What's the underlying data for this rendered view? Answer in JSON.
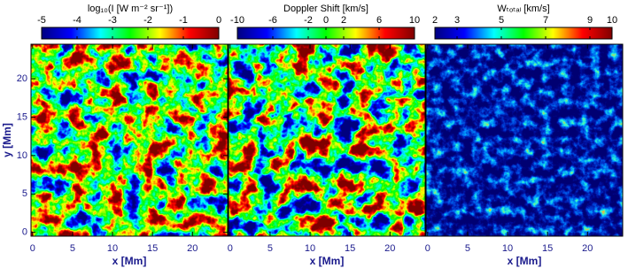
{
  "chart_data": [
    {
      "type": "heatmap",
      "colormap": "jet",
      "colorbar_label": "log₁₀(I [W m⁻² sr⁻¹])",
      "colorbar_lim": [
        -5,
        0
      ],
      "colorbar_ticks": [
        -5,
        -4,
        -3,
        -2,
        -1,
        0
      ],
      "xlabel": "x [Mm]",
      "ylabel": "y [Mm]",
      "xlim": [
        -0.2,
        24.4
      ],
      "xticks": [
        0,
        5,
        10,
        15,
        20
      ],
      "ylim": [
        -0.5,
        24.5
      ],
      "yticks": [
        0,
        5,
        10,
        15,
        20
      ]
    },
    {
      "type": "heatmap",
      "colormap": "jet",
      "colorbar_label": "Doppler Shift [km/s]",
      "colorbar_lim": [
        -10,
        10
      ],
      "colorbar_ticks": [
        -10,
        -6,
        -2,
        0,
        2,
        6,
        10
      ],
      "xlabel": "x [Mm]",
      "xlim": [
        -0.2,
        24.4
      ],
      "xticks": [
        0,
        5,
        10,
        15,
        20
      ]
    },
    {
      "type": "heatmap",
      "colormap": "jet",
      "colorbar_label": "Wₜₒₜₐₗ [km/s]",
      "colorbar_lim": [
        2,
        10
      ],
      "colorbar_ticks": [
        2,
        3,
        5,
        7,
        9,
        10
      ],
      "xlabel": "x [Mm]",
      "xlim": [
        -0.2,
        24.4
      ],
      "xticks": [
        0,
        5,
        10,
        15,
        20
      ]
    }
  ]
}
